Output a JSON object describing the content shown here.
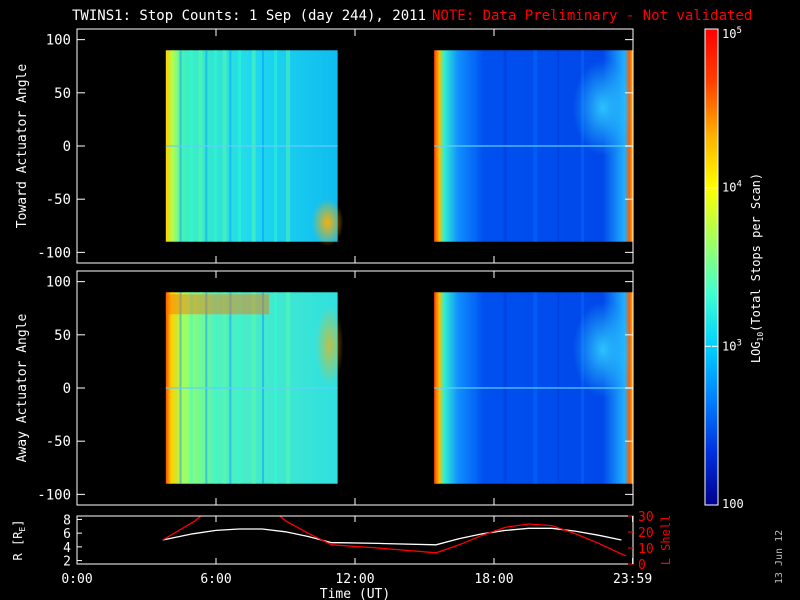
{
  "header": {
    "title": "TWINS1: Stop Counts:  1 Sep (day 244), 2011",
    "note": "NOTE: Data Preliminary - Not validated"
  },
  "footer": {
    "stamp": "13 Jun 12"
  },
  "chart_data": [
    {
      "type": "heatmap",
      "ylabel": "Toward Actuator Angle",
      "ylim": [
        -110,
        110
      ],
      "yticks": [
        100,
        50,
        0,
        -50,
        -100
      ],
      "ytick_labels": [
        "100",
        "50",
        "0",
        "-50",
        "-100"
      ],
      "x_time_hours_range": [
        0,
        24
      ],
      "blocks": [
        {
          "start": "03:50",
          "end": "11:15",
          "angle_range": [
            -90,
            90
          ],
          "log10_counts_typical": 3.5
        },
        {
          "start": "15:25",
          "end": "23:59",
          "angle_range": [
            -90,
            90
          ],
          "log10_counts_typical": 2.8
        }
      ]
    },
    {
      "type": "heatmap",
      "ylabel": "Away Actuator Angle",
      "ylim": [
        -110,
        110
      ],
      "yticks": [
        100,
        50,
        0,
        -50,
        -100
      ],
      "ytick_labels": [
        "100",
        "50",
        "0",
        "-50",
        "-100"
      ],
      "x_time_hours_range": [
        0,
        24
      ],
      "blocks": [
        {
          "start": "03:50",
          "end": "11:15",
          "angle_range": [
            -90,
            90
          ],
          "log10_counts_typical": 3.6
        },
        {
          "start": "15:25",
          "end": "23:59",
          "angle_range": [
            -90,
            90
          ],
          "log10_counts_typical": 2.8
        }
      ]
    },
    {
      "type": "line",
      "ylabel_left": "R [R",
      "ylabel_left_sub": "E",
      "ylabel_left_end": "]",
      "ylabel_right": "L Shell",
      "ylim_left": [
        1.5,
        8.5
      ],
      "yticks_left": [
        2,
        4,
        6,
        8
      ],
      "ytick_labels_left": [
        "2",
        "4",
        "6",
        "8"
      ],
      "ylim_right": [
        0,
        30
      ],
      "yticks_right": [
        0,
        10,
        20,
        30
      ],
      "ytick_labels_right": [
        "0",
        "10",
        "20",
        "30"
      ],
      "xlabel": "Time (UT)",
      "xticks_hours": [
        0,
        6,
        12,
        18,
        23.983
      ],
      "xtick_labels": [
        "0:00",
        "6:00",
        "12:00",
        "18:00",
        "23:59"
      ],
      "series": [
        {
          "color": "#ffffff",
          "axis": "left",
          "x_hours": [
            3.7,
            5.0,
            6.0,
            7.0,
            8.0,
            9.0,
            10.0,
            11.0,
            11.3,
            13.0,
            15.5,
            16.5,
            17.5,
            18.5,
            19.5,
            20.5,
            21.5,
            22.5,
            23.5
          ],
          "values": [
            5.0,
            5.9,
            6.4,
            6.6,
            6.6,
            6.2,
            5.5,
            4.6,
            4.6,
            4.5,
            4.3,
            5.2,
            5.9,
            6.4,
            6.7,
            6.7,
            6.3,
            5.7,
            5.0
          ]
        },
        {
          "color": "#ff0000",
          "axis": "right",
          "x_hours": [
            3.7,
            5.1,
            5.5,
            8.6,
            9.0,
            10.0,
            11.0,
            13.0,
            15.5,
            16.5,
            17.5,
            18.5,
            19.5,
            20.5,
            21.5,
            22.5,
            23.7
          ],
          "values": [
            15,
            27,
            32,
            32,
            27,
            19,
            12,
            10,
            7,
            12,
            18,
            23,
            25,
            24,
            19,
            13,
            5
          ]
        }
      ]
    },
    {
      "type": "heatmap",
      "role": "colorbar",
      "zlabel": "LOG",
      "zlabel_sub": "10",
      "zlabel_rest": "(Total Stops per Scan)",
      "zscale": "log",
      "zlim": [
        100,
        100000
      ],
      "ztick_labels": [
        {
          "base": "100",
          "exp": ""
        },
        {
          "base": "10",
          "exp": "3"
        },
        {
          "base": "10",
          "exp": "4"
        },
        {
          "base": "10",
          "exp": "5"
        }
      ],
      "colors": [
        "#00008c",
        "#0030e0",
        "#0080ff",
        "#00d0ff",
        "#40ffd0",
        "#a0ff60",
        "#ffff00",
        "#ffb000",
        "#ff4000",
        "#ff0000"
      ]
    }
  ]
}
